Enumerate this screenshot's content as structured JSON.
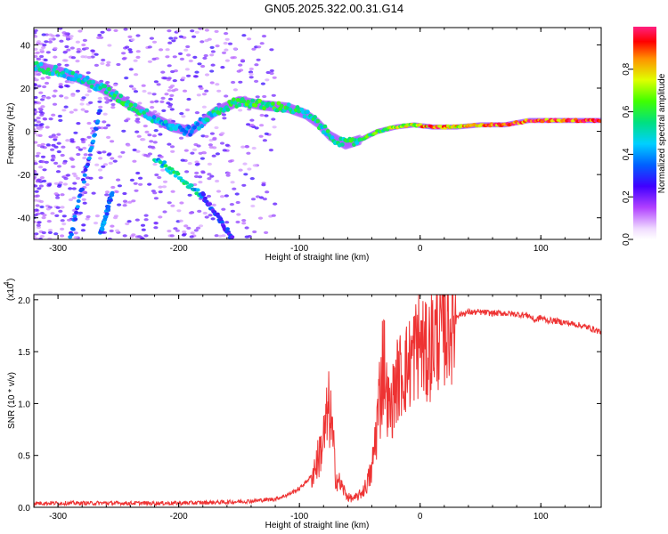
{
  "title": "GN05.2025.322.00.31.G14",
  "colors": {
    "snr_line": "#ee3333",
    "frame": "#000000"
  },
  "chart_data": [
    {
      "type": "heatmap",
      "xlabel": "Height of straight line (km)",
      "ylabel": "Frequency (Hz)",
      "xlim": [
        -320,
        150
      ],
      "ylim": [
        -50,
        48
      ],
      "xticks": [
        -300,
        -200,
        -100,
        0,
        100
      ],
      "xtick_labels": [
        "-300",
        "-200",
        "-100",
        "0",
        "100"
      ],
      "yticks": [
        -40,
        -20,
        0,
        20,
        40
      ],
      "ytick_labels": [
        "-40",
        "-20",
        "0",
        "20",
        "40"
      ],
      "colorbar": {
        "label": "Normalized spectral amplitude",
        "range": [
          0,
          1
        ],
        "ticks": [
          0.0,
          0.2,
          0.4,
          0.6,
          0.8
        ],
        "tick_labels": [
          "0.0",
          "0.2",
          "0.4",
          "0.6",
          "0.8"
        ]
      },
      "ridge": [
        {
          "x": -320,
          "y": 30,
          "a": 0.55
        },
        {
          "x": -300,
          "y": 28,
          "a": 0.55
        },
        {
          "x": -280,
          "y": 24,
          "a": 0.5
        },
        {
          "x": -260,
          "y": 19,
          "a": 0.55
        },
        {
          "x": -240,
          "y": 12,
          "a": 0.6
        },
        {
          "x": -220,
          "y": 6,
          "a": 0.5
        },
        {
          "x": -205,
          "y": 2,
          "a": 0.45
        },
        {
          "x": -190,
          "y": 0,
          "a": 0.4
        },
        {
          "x": -170,
          "y": 9,
          "a": 0.55
        },
        {
          "x": -150,
          "y": 14,
          "a": 0.6
        },
        {
          "x": -130,
          "y": 12,
          "a": 0.65
        },
        {
          "x": -110,
          "y": 11,
          "a": 0.6
        },
        {
          "x": -95,
          "y": 8,
          "a": 0.55
        },
        {
          "x": -85,
          "y": 4,
          "a": 0.55
        },
        {
          "x": -75,
          "y": -2,
          "a": 0.55
        },
        {
          "x": -62,
          "y": -6,
          "a": 0.6
        },
        {
          "x": -50,
          "y": -4,
          "a": 0.6
        },
        {
          "x": -35,
          "y": 0,
          "a": 0.65
        },
        {
          "x": -20,
          "y": 2,
          "a": 0.75
        },
        {
          "x": -5,
          "y": 3,
          "a": 0.8
        },
        {
          "x": 10,
          "y": 2,
          "a": 0.95
        },
        {
          "x": 30,
          "y": 2,
          "a": 0.85
        },
        {
          "x": 50,
          "y": 3,
          "a": 0.85
        },
        {
          "x": 70,
          "y": 3,
          "a": 0.95
        },
        {
          "x": 90,
          "y": 5,
          "a": 1.0
        },
        {
          "x": 110,
          "y": 5,
          "a": 0.95
        },
        {
          "x": 130,
          "y": 5,
          "a": 1.0
        },
        {
          "x": 150,
          "y": 5,
          "a": 1.0
        }
      ],
      "secondary_tracks": [
        {
          "x": [
            -290,
            -265
          ],
          "y": [
            -50,
            10
          ],
          "a": 0.35
        },
        {
          "x": [
            -265,
            -255
          ],
          "y": [
            -48,
            -28
          ],
          "a": 0.4
        },
        {
          "x": [
            -220,
            -180
          ],
          "y": [
            -12,
            -30
          ],
          "a": 0.5
        },
        {
          "x": [
            -180,
            -155
          ],
          "y": [
            -30,
            -50
          ],
          "a": 0.3
        }
      ]
    },
    {
      "type": "line",
      "xlabel": "Height of straight line (km)",
      "ylabel": "SNR (10 * v/v)",
      "multiplier_label": "(x10",
      "multiplier_exp": "4",
      "xlim": [
        -320,
        150
      ],
      "ylim": [
        0,
        2.05
      ],
      "xticks": [
        -300,
        -200,
        -100,
        0,
        100
      ],
      "xtick_labels": [
        "-300",
        "-200",
        "-100",
        "0",
        "100"
      ],
      "yticks": [
        0.0,
        0.5,
        1.0,
        1.5,
        2.0
      ],
      "ytick_labels": [
        "0.0",
        "0.5",
        "1.0",
        "1.5",
        "2.0"
      ],
      "series": [
        {
          "name": "SNR",
          "x": [
            -320,
            -280,
            -240,
            -200,
            -160,
            -140,
            -120,
            -110,
            -100,
            -90,
            -85,
            -80,
            -77,
            -75,
            -72,
            -70,
            -65,
            -60,
            -55,
            -50,
            -45,
            -40,
            -35,
            -30,
            -28,
            -25,
            -20,
            -15,
            -10,
            -5,
            0,
            5,
            10,
            15,
            20,
            30,
            40,
            50,
            60,
            70,
            80,
            90,
            95,
            100,
            105,
            110,
            120,
            130,
            140,
            150
          ],
          "y": [
            0.04,
            0.04,
            0.04,
            0.04,
            0.05,
            0.06,
            0.08,
            0.12,
            0.18,
            0.3,
            0.45,
            0.65,
            0.85,
            0.95,
            0.6,
            0.3,
            0.2,
            0.1,
            0.08,
            0.12,
            0.2,
            0.35,
            0.9,
            1.5,
            1.1,
            0.9,
            1.2,
            1.3,
            1.35,
            1.5,
            1.6,
            1.45,
            1.6,
            1.7,
            1.75,
            1.85,
            1.88,
            1.88,
            1.87,
            1.87,
            1.86,
            1.85,
            1.8,
            1.83,
            1.8,
            1.8,
            1.78,
            1.76,
            1.73,
            1.69
          ]
        }
      ]
    }
  ]
}
